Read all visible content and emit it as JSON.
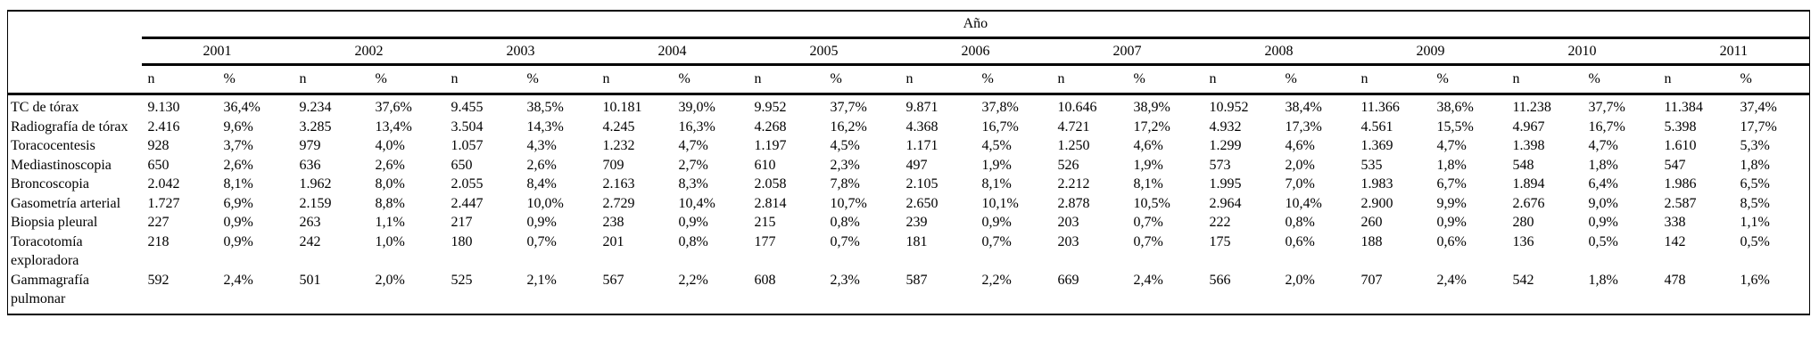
{
  "table": {
    "spanner_label": "Año",
    "years": [
      "2001",
      "2002",
      "2003",
      "2004",
      "2005",
      "2006",
      "2007",
      "2008",
      "2009",
      "2010",
      "2011"
    ],
    "sub_n_label": "n",
    "sub_pct_label": "%",
    "rows": [
      {
        "label": "TC de tórax",
        "cells": [
          "9.130",
          "36,4%",
          "9.234",
          "37,6%",
          "9.455",
          "38,5%",
          "10.181",
          "39,0%",
          "9.952",
          "37,7%",
          "9.871",
          "37,8%",
          "10.646",
          "38,9%",
          "10.952",
          "38,4%",
          "11.366",
          "38,6%",
          "11.238",
          "37,7%",
          "11.384",
          "37,4%"
        ]
      },
      {
        "label": "Radiografía de tórax",
        "cells": [
          "2.416",
          "9,6%",
          "3.285",
          "13,4%",
          "3.504",
          "14,3%",
          "4.245",
          "16,3%",
          "4.268",
          "16,2%",
          "4.368",
          "16,7%",
          "4.721",
          "17,2%",
          "4.932",
          "17,3%",
          "4.561",
          "15,5%",
          "4.967",
          "16,7%",
          "5.398",
          "17,7%"
        ]
      },
      {
        "label": "Toracocentesis",
        "cells": [
          "928",
          "3,7%",
          "979",
          "4,0%",
          "1.057",
          "4,3%",
          "1.232",
          "4,7%",
          "1.197",
          "4,5%",
          "1.171",
          "4,5%",
          "1.250",
          "4,6%",
          "1.299",
          "4,6%",
          "1.369",
          "4,7%",
          "1.398",
          "4,7%",
          "1.610",
          "5,3%"
        ]
      },
      {
        "label": "Mediastinoscopia",
        "cells": [
          "650",
          "2,6%",
          "636",
          "2,6%",
          "650",
          "2,6%",
          "709",
          "2,7%",
          "610",
          "2,3%",
          "497",
          "1,9%",
          "526",
          "1,9%",
          "573",
          "2,0%",
          "535",
          "1,8%",
          "548",
          "1,8%",
          "547",
          "1,8%"
        ]
      },
      {
        "label": "Broncoscopia",
        "cells": [
          "2.042",
          "8,1%",
          "1.962",
          "8,0%",
          "2.055",
          "8,4%",
          "2.163",
          "8,3%",
          "2.058",
          "7,8%",
          "2.105",
          "8,1%",
          "2.212",
          "8,1%",
          "1.995",
          "7,0%",
          "1.983",
          "6,7%",
          "1.894",
          "6,4%",
          "1.986",
          "6,5%"
        ]
      },
      {
        "label": "Gasometría arterial",
        "cells": [
          "1.727",
          "6,9%",
          "2.159",
          "8,8%",
          "2.447",
          "10,0%",
          "2.729",
          "10,4%",
          "2.814",
          "10,7%",
          "2.650",
          "10,1%",
          "2.878",
          "10,5%",
          "2.964",
          "10,4%",
          "2.900",
          "9,9%",
          "2.676",
          "9,0%",
          "2.587",
          "8,5%"
        ]
      },
      {
        "label": "Biopsia pleural",
        "cells": [
          "227",
          "0,9%",
          "263",
          "1,1%",
          "217",
          "0,9%",
          "238",
          "0,9%",
          "215",
          "0,8%",
          "239",
          "0,9%",
          "203",
          "0,7%",
          "222",
          "0,8%",
          "260",
          "0,9%",
          "280",
          "0,9%",
          "338",
          "1,1%"
        ]
      },
      {
        "label": "Toracotomía exploradora",
        "cells": [
          "218",
          "0,9%",
          "242",
          "1,0%",
          "180",
          "0,7%",
          "201",
          "0,8%",
          "177",
          "0,7%",
          "181",
          "0,7%",
          "203",
          "0,7%",
          "175",
          "0,6%",
          "188",
          "0,6%",
          "136",
          "0,5%",
          "142",
          "0,5%"
        ]
      },
      {
        "label": "Gammagrafía pulmonar",
        "cells": [
          "592",
          "2,4%",
          "501",
          "2,0%",
          "525",
          "2,1%",
          "567",
          "2,2%",
          "608",
          "2,3%",
          "587",
          "2,2%",
          "669",
          "2,4%",
          "566",
          "2,0%",
          "707",
          "2,4%",
          "542",
          "1,8%",
          "478",
          "1,6%"
        ]
      }
    ]
  }
}
